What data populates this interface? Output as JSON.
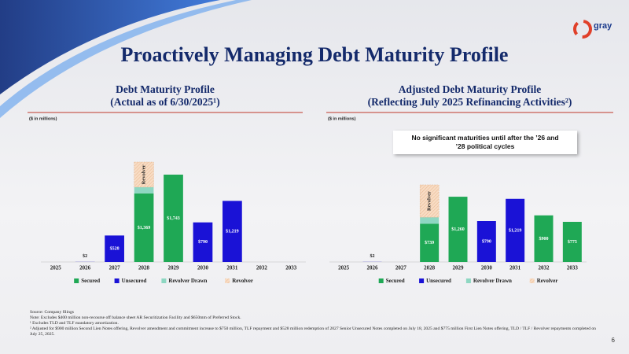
{
  "title": "Proactively Managing Debt Maturity Profile",
  "logo": "gray",
  "callout": "No significant maturities until after the ’26 and ’28 political cycles",
  "page_number": "6",
  "notes": [
    "Source: Company filings",
    "Note: Excludes $400 million non-recourse off balance sheet AR Securitization Facility and $650mm of Preferred Stock.",
    "¹ Excludes TLD and TLF mandatory amortization.",
    "² Adjusted for $900 million Second Lien Notes offering, Revolver amendment and commitment increase to $750 million, TLF repayment and $528 million redemption of 2027 Senior Unsecured Notes completed on July 18, 2025 and $775 million First Lien Notes offering, TLD / TLF / Revolver repayments completed on July 25, 2025."
  ],
  "chart_data": [
    {
      "type": "bar",
      "stacked": true,
      "title": "Debt Maturity Profile",
      "subtitle": "(Actual as of 6/30/2025¹)",
      "units": "($ in millions)",
      "legend": "bottom",
      "categories": [
        "2025",
        "2026",
        "2027",
        "2028",
        "2029",
        "2030",
        "2031",
        "2032",
        "2033"
      ],
      "series": [
        {
          "name": "Secured",
          "color": "#1fa855",
          "values": [
            null,
            null,
            null,
            1369,
            1743,
            null,
            null,
            null,
            null
          ],
          "value_labels": [
            null,
            null,
            null,
            "$1,369",
            "$1,743",
            null,
            null,
            null,
            null
          ]
        },
        {
          "name": "Unsecured",
          "color": "#1a12d6",
          "values": [
            null,
            2,
            528,
            null,
            null,
            790,
            1219,
            null,
            null
          ],
          "value_labels": [
            null,
            "$2",
            "$528",
            null,
            null,
            "$790",
            "$1,219",
            null,
            null
          ]
        },
        {
          "name": "Revolver Drawn",
          "color": "#8ed7c2",
          "values": [
            null,
            null,
            null,
            125,
            null,
            null,
            null,
            null,
            null
          ]
        },
        {
          "name": "Revolver",
          "color": "#f8dcc4",
          "hatch": true,
          "values": [
            null,
            null,
            null,
            500,
            null,
            null,
            null,
            null,
            null
          ]
        }
      ]
    },
    {
      "type": "bar",
      "stacked": true,
      "title": "Adjusted Debt Maturity Profile",
      "subtitle": "(Reflecting July 2025 Refinancing Activities²)",
      "units": "($ in millions)",
      "legend": "bottom",
      "categories": [
        "2025",
        "2026",
        "2027",
        "2028",
        "2029",
        "2030",
        "2031",
        "2032",
        "2033"
      ],
      "series": [
        {
          "name": "Secured",
          "color": "#1fa855",
          "values": [
            null,
            null,
            null,
            739,
            1260,
            null,
            null,
            900,
            775
          ],
          "value_labels": [
            null,
            null,
            null,
            "$739",
            "$1,260",
            null,
            null,
            "$900",
            "$775"
          ]
        },
        {
          "name": "Unsecured",
          "color": "#1a12d6",
          "values": [
            null,
            2,
            null,
            null,
            null,
            790,
            1219,
            null,
            null
          ],
          "value_labels": [
            null,
            "$2",
            null,
            null,
            null,
            "$790",
            "$1,219",
            null,
            null
          ]
        },
        {
          "name": "Revolver Drawn",
          "color": "#8ed7c2",
          "values": [
            null,
            null,
            null,
            125,
            null,
            null,
            null,
            null,
            null
          ]
        },
        {
          "name": "Revolver",
          "color": "#f8dcc4",
          "hatch": true,
          "values": [
            null,
            null,
            null,
            625,
            null,
            null,
            null,
            null,
            null
          ]
        }
      ]
    }
  ]
}
